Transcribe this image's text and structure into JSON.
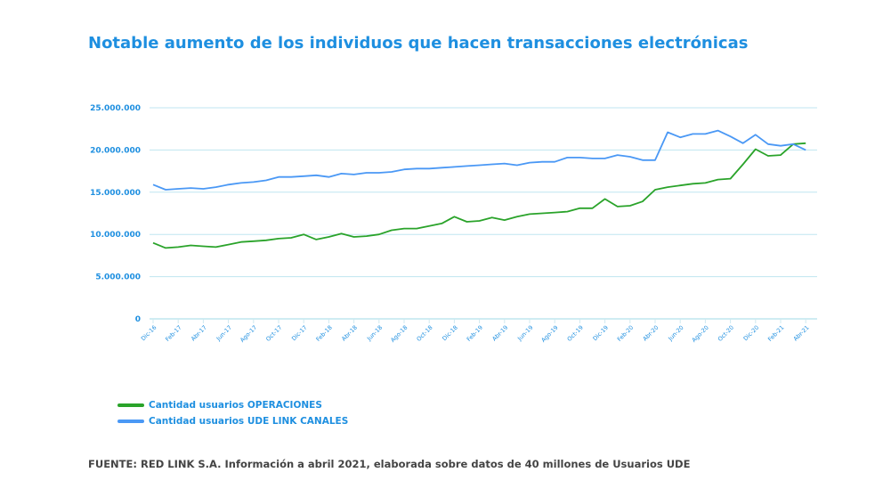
{
  "chart_data": {
    "type": "line",
    "title": "Notable aumento de los individuos que hacen transacciones electrónicas",
    "ylim": [
      0,
      25000000
    ],
    "yticks": [
      "0",
      "5.000.000",
      "10.000.000",
      "15.000.000",
      "20.000.000",
      "25.000.000"
    ],
    "ytick_values": [
      0,
      5000000,
      10000000,
      15000000,
      20000000,
      25000000
    ],
    "xtick_labels": [
      "Dic-16",
      "Feb-17",
      "Abr-17",
      "Jun-17",
      "Ago-17",
      "Oct-17",
      "Dic-17",
      "Feb-18",
      "Abr-18",
      "Jun-18",
      "Ago-18",
      "Oct-18",
      "Dic-18",
      "Feb-19",
      "Abr-19",
      "Jun-19",
      "Ago-19",
      "Oct-19",
      "Dic-19",
      "Feb-20",
      "Abr-20",
      "Jun-20",
      "Ago-20",
      "Oct-20",
      "Dic-20",
      "Feb-21",
      "Abr-21"
    ],
    "x_range": [
      "Dic-16",
      "Abr-21"
    ],
    "x_frequency": "monthly",
    "grid": "horizontal",
    "legend_position": "bottom-left",
    "series": [
      {
        "name": "Cantidad usuarios OPERACIONES",
        "color": "#2aa32a",
        "values": [
          9.0,
          8.4,
          8.5,
          8.7,
          8.6,
          8.5,
          8.8,
          9.1,
          9.2,
          9.3,
          9.5,
          9.6,
          10.0,
          9.4,
          9.7,
          10.1,
          9.7,
          9.8,
          10.0,
          10.5,
          10.7,
          10.7,
          11.0,
          11.3,
          12.1,
          11.5,
          11.6,
          12.0,
          11.7,
          12.1,
          12.4,
          12.5,
          12.6,
          12.7,
          13.1,
          13.1,
          14.2,
          13.3,
          13.4,
          13.9,
          15.3,
          15.6,
          15.8,
          16.0,
          16.1,
          16.5,
          16.6,
          18.3,
          20.1,
          19.3,
          19.4,
          20.7,
          20.8
        ],
        "unit": "millones"
      },
      {
        "name": "Cantidad usuarios UDE LINK CANALES",
        "color": "#4a98f5",
        "values": [
          15.9,
          15.3,
          15.4,
          15.5,
          15.4,
          15.6,
          15.9,
          16.1,
          16.2,
          16.4,
          16.8,
          16.8,
          16.9,
          17.0,
          16.8,
          17.2,
          17.1,
          17.3,
          17.3,
          17.4,
          17.7,
          17.8,
          17.8,
          17.9,
          18.0,
          18.1,
          18.2,
          18.3,
          18.4,
          18.2,
          18.5,
          18.6,
          18.6,
          19.1,
          19.1,
          19.0,
          19.0,
          19.4,
          19.2,
          18.8,
          18.8,
          22.1,
          21.5,
          21.9,
          21.9,
          22.3,
          21.6,
          20.8,
          21.8,
          20.7,
          20.5,
          20.7,
          20.0
        ],
        "unit": "millones"
      }
    ]
  },
  "source": "FUENTE: RED LINK S.A. Información a abril 2021, elaborada sobre datos de 40 millones de Usuarios UDE",
  "colors": {
    "title": "#1e8fe0",
    "grid": "#bfe6f0",
    "axis_text": "#1e8fe0"
  }
}
